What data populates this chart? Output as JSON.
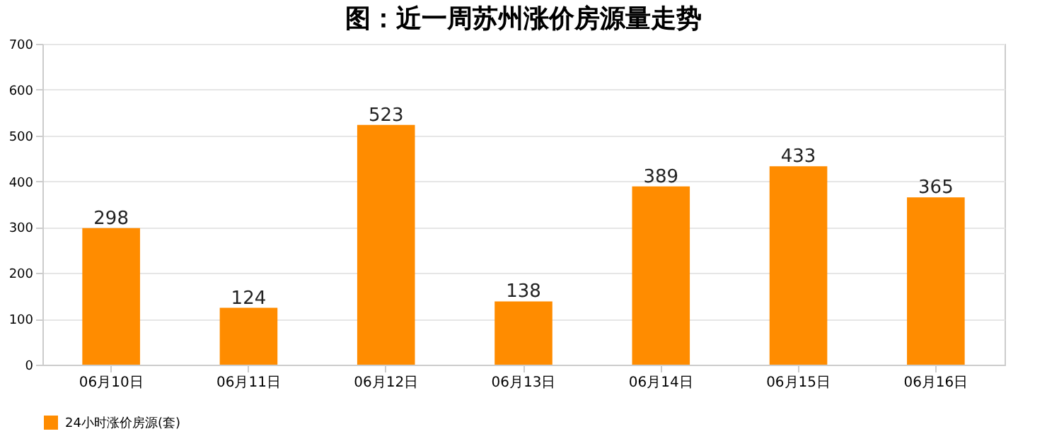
{
  "chart_data": {
    "type": "bar",
    "title": "图：近一周苏州涨价房源量走势",
    "categories": [
      "06月10日",
      "06月11日",
      "06月12日",
      "06月13日",
      "06月14日",
      "06月15日",
      "06月16日"
    ],
    "series": [
      {
        "name": "24小时涨价房源(套)",
        "color": "#ff8c00",
        "values": [
          298,
          124,
          523,
          138,
          389,
          433,
          365
        ]
      }
    ],
    "ylim": [
      0,
      700
    ],
    "yticks": [
      0,
      100,
      200,
      300,
      400,
      500,
      600,
      700
    ],
    "grid": "y",
    "legend": "bottom",
    "data_labels": true
  }
}
